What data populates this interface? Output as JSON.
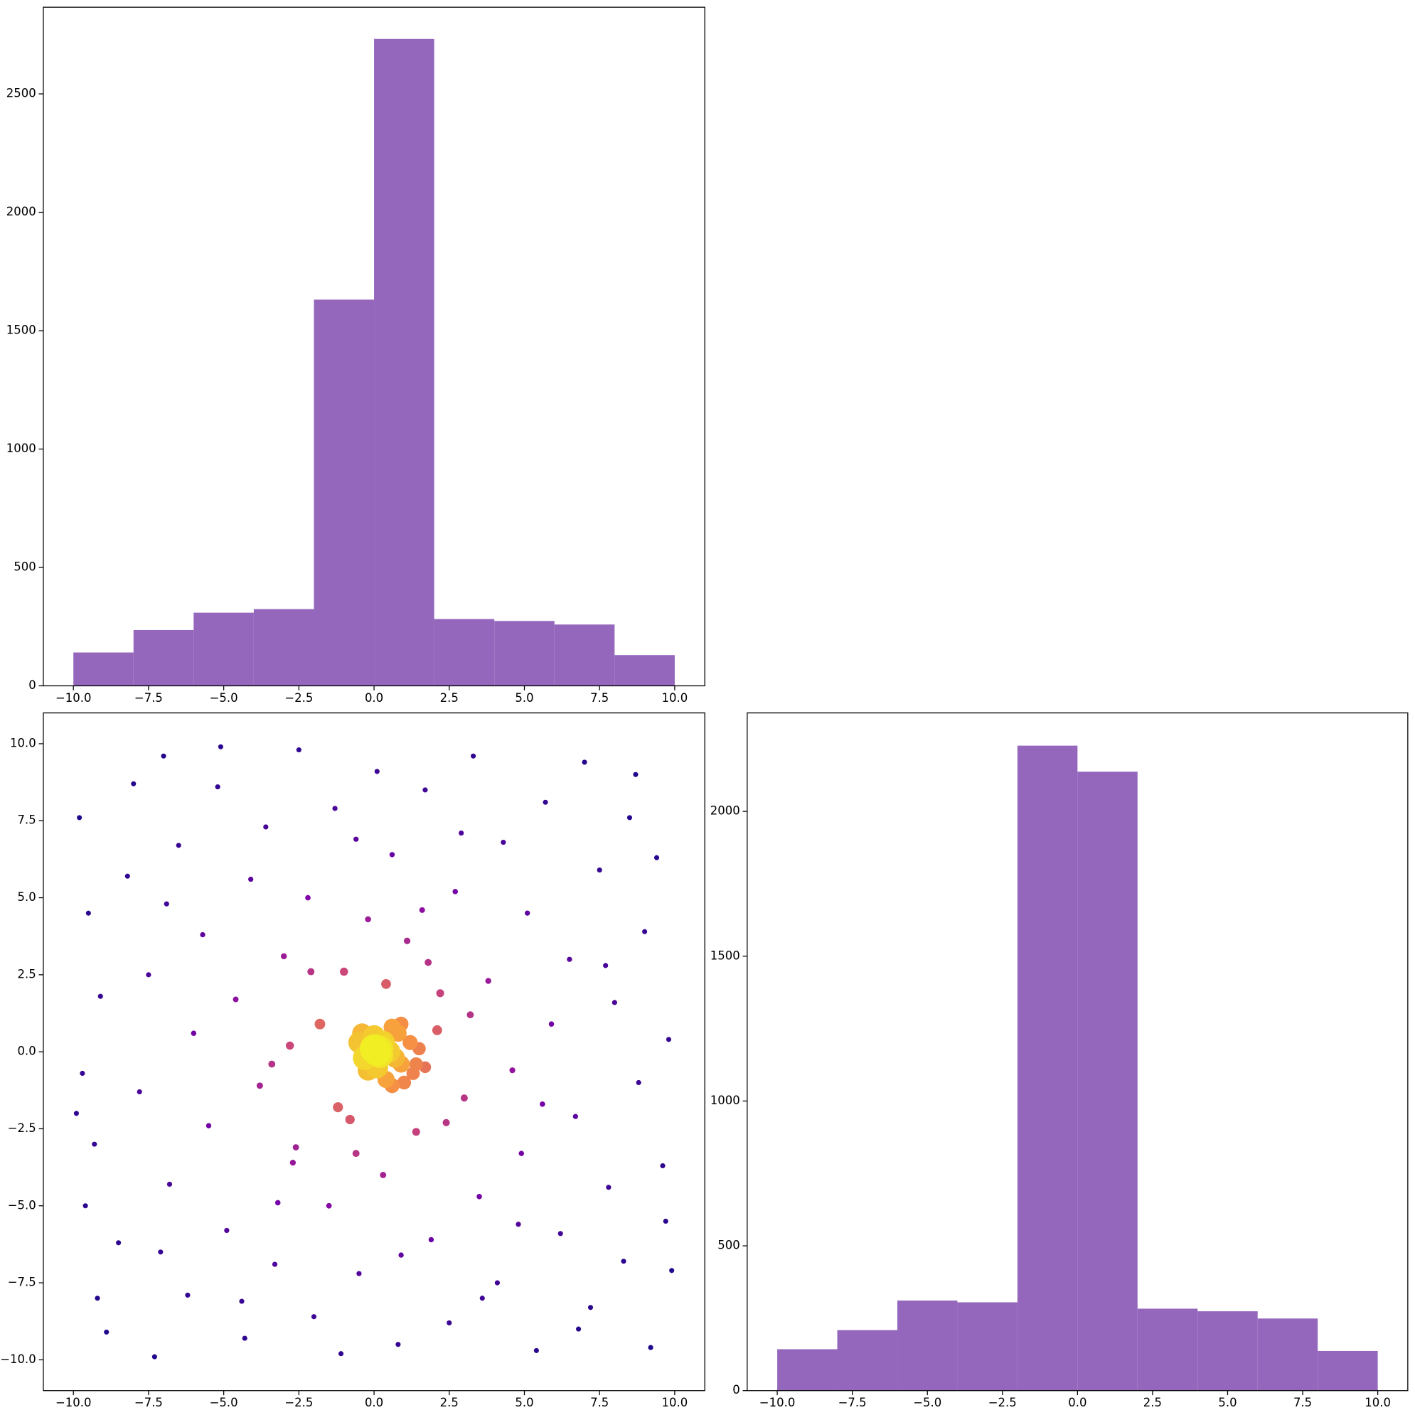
{
  "chart_data": [
    {
      "type": "histogram",
      "color": "#9467bd",
      "bins": [
        -10,
        -8,
        -6,
        -4,
        -2,
        0,
        2,
        4,
        6,
        8,
        10
      ],
      "values": [
        141,
        236,
        309,
        324,
        1631,
        2732,
        282,
        274,
        259,
        130
      ],
      "xlim": [
        -11,
        11
      ],
      "ylim": [
        0,
        2866
      ],
      "xticks": [
        {
          "value": -10,
          "label": "−10.0"
        },
        {
          "value": -7.5,
          "label": "−7.5"
        },
        {
          "value": -5,
          "label": "−5.0"
        },
        {
          "value": -2.5,
          "label": "−2.5"
        },
        {
          "value": 0,
          "label": "0.0"
        },
        {
          "value": 2.5,
          "label": "2.5"
        },
        {
          "value": 5,
          "label": "5.0"
        },
        {
          "value": 7.5,
          "label": "7.5"
        },
        {
          "value": 10,
          "label": "10.0"
        }
      ],
      "yticks": [
        0,
        500,
        1000,
        1500,
        2000,
        2500
      ]
    },
    {
      "type": "scatter",
      "colormap": "plasma",
      "x": [
        -9.8,
        -9.5,
        -9.1,
        -9.7,
        -9.3,
        -9.6,
        -9.2,
        -8.5,
        -8.2,
        -8.0,
        -7.8,
        -7.5,
        -7.3,
        -7.0,
        -6.8,
        -6.5,
        -6.2,
        -6.0,
        -5.7,
        -5.5,
        -5.2,
        -4.9,
        -4.6,
        -4.3,
        -4.1,
        -3.8,
        -3.6,
        -3.3,
        -3.0,
        -2.7,
        -2.5,
        -2.2,
        -2.0,
        -1.8,
        -1.5,
        -1.3,
        -1.0,
        -0.8,
        -0.5,
        -0.2,
        0.1,
        0.3,
        0.6,
        0.8,
        1.1,
        1.4,
        1.7,
        1.9,
        2.2,
        2.5,
        2.7,
        3.0,
        3.3,
        3.5,
        3.8,
        4.1,
        4.3,
        4.6,
        4.9,
        5.1,
        5.4,
        5.7,
        5.9,
        6.2,
        6.5,
        6.7,
        7.0,
        7.2,
        7.5,
        7.8,
        8.0,
        8.3,
        8.5,
        8.8,
        9.0,
        9.2,
        9.4,
        9.6,
        9.8,
        9.9,
        -8.9,
        -6.9,
        -4.4,
        -2.8,
        -1.1,
        0.9,
        2.9,
        4.8,
        6.8,
        8.7,
        -9.9,
        -7.1,
        -5.1,
        -3.2,
        -0.6,
        1.6,
        3.6,
        5.6,
        7.7,
        9.7,
        -2.1,
        2.4,
        -1.2,
        1.8,
        -2.6,
        3.2,
        -3.4,
        0.4,
        -0.6,
        2.1,
        0.5,
        0.2,
        0.9,
        0.0,
        -0.3,
        1.2,
        0.6,
        0.4,
        1.3,
        -0.5,
        0.8,
        1.5,
        0.1,
        1.0,
        0.7,
        0.3,
        -0.2,
        1.4,
        0.9,
        0.6,
        0.1,
        0.2,
        0.0,
        1.7,
        -0.4
      ],
      "y": [
        7.6,
        4.5,
        1.8,
        -0.7,
        -3.0,
        -5.0,
        -8.0,
        -6.2,
        5.7,
        8.7,
        -1.3,
        2.5,
        -9.9,
        9.6,
        -4.3,
        6.7,
        -7.9,
        0.6,
        3.8,
        -2.4,
        8.6,
        -5.8,
        1.7,
        -9.3,
        5.6,
        -1.1,
        7.3,
        -6.9,
        3.1,
        -3.6,
        9.8,
        5.0,
        -8.6,
        0.9,
        -5.0,
        7.9,
        2.6,
        -2.2,
        -7.2,
        4.3,
        9.1,
        -4.0,
        6.4,
        -9.5,
        3.6,
        -2.6,
        8.5,
        -6.1,
        1.9,
        -8.8,
        5.2,
        -1.5,
        9.6,
        -4.7,
        2.3,
        -7.5,
        6.8,
        -0.6,
        -3.3,
        4.5,
        -9.7,
        8.1,
        0.9,
        -5.9,
        3.0,
        -2.1,
        9.4,
        -8.3,
        5.9,
        -4.4,
        1.6,
        -6.8,
        7.6,
        -1.0,
        3.9,
        -9.6,
        6.3,
        -3.7,
        0.4,
        -7.1,
        -9.1,
        4.8,
        -8.1,
        0.2,
        -9.8,
        -6.6,
        7.1,
        -5.6,
        -9.0,
        9.0,
        -2.0,
        -6.5,
        9.9,
        -4.9,
        6.9,
        4.6,
        -8.0,
        -1.7,
        2.8,
        -5.5,
        2.6,
        -2.3,
        -1.8,
        2.9,
        -3.1,
        1.2,
        -0.4,
        2.2,
        -3.3,
        0.7,
        0.0,
        0.1,
        -0.4,
        0.5,
        -0.2,
        0.3,
        0.8,
        -0.9,
        -0.7,
        0.3,
        0.6,
        0.1,
        -0.5,
        -1.0,
        -0.2,
        0.3,
        -0.6,
        -0.4,
        0.9,
        -1.1,
        0.0,
        -0.1,
        0.1,
        -0.5,
        0.6
      ],
      "xlim": [
        -11,
        11
      ],
      "ylim": [
        -11,
        11
      ],
      "xticks": [
        {
          "value": -10,
          "label": "−10.0"
        },
        {
          "value": -7.5,
          "label": "−7.5"
        },
        {
          "value": -5,
          "label": "−5.0"
        },
        {
          "value": -2.5,
          "label": "−2.5"
        },
        {
          "value": 0,
          "label": "0.0"
        },
        {
          "value": 2.5,
          "label": "2.5"
        },
        {
          "value": 5,
          "label": "5.0"
        },
        {
          "value": 7.5,
          "label": "7.5"
        },
        {
          "value": 10,
          "label": "10.0"
        }
      ],
      "yticks": [
        {
          "value": -10,
          "label": "−10.0"
        },
        {
          "value": -7.5,
          "label": "−7.5"
        },
        {
          "value": -5,
          "label": "−5.0"
        },
        {
          "value": -2.5,
          "label": "−2.5"
        },
        {
          "value": 0,
          "label": "0.0"
        },
        {
          "value": 2.5,
          "label": "2.5"
        },
        {
          "value": 5,
          "label": "5.0"
        },
        {
          "value": 7.5,
          "label": "7.5"
        },
        {
          "value": 10,
          "label": "10.0"
        }
      ]
    },
    {
      "type": "histogram",
      "color": "#9467bd",
      "bins": [
        -10,
        -8,
        -6,
        -4,
        -2,
        0,
        2,
        4,
        6,
        8,
        10
      ],
      "values": [
        143,
        209,
        311,
        305,
        2227,
        2137,
        283,
        274,
        249,
        137
      ],
      "xlim": [
        -11,
        11
      ],
      "ylim": [
        0,
        2340
      ],
      "xticks": [
        {
          "value": -10,
          "label": "−10.0"
        },
        {
          "value": -7.5,
          "label": "−7.5"
        },
        {
          "value": -5,
          "label": "−5.0"
        },
        {
          "value": -2.5,
          "label": "−2.5"
        },
        {
          "value": 0,
          "label": "0.0"
        },
        {
          "value": 2.5,
          "label": "2.5"
        },
        {
          "value": 5,
          "label": "5.0"
        },
        {
          "value": 7.5,
          "label": "7.5"
        },
        {
          "value": 10,
          "label": "10.0"
        }
      ],
      "yticks": [
        0,
        500,
        1000,
        1500,
        2000
      ]
    }
  ]
}
